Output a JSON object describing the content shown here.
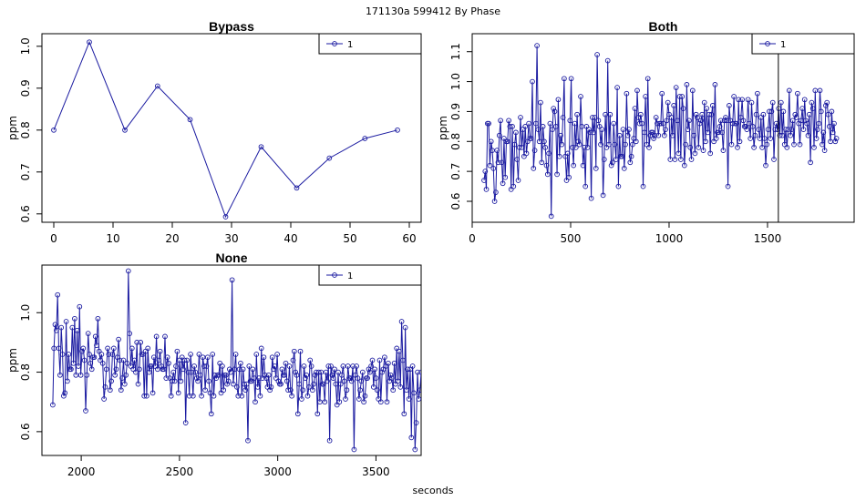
{
  "figure_title": "171130a   599412   By Phase",
  "shared_xlabel": "seconds",
  "colors": {
    "series": "#1a1aa0",
    "axis": "#000000",
    "background": "#ffffff"
  },
  "chart_data": [
    {
      "type": "line",
      "title": "Bypass",
      "ylabel": "ppm",
      "xlim": [
        -2,
        62
      ],
      "ylim": [
        0.58,
        1.03
      ],
      "xticks": [
        0,
        10,
        20,
        30,
        40,
        50,
        60
      ],
      "yticks": [
        0.6,
        0.7,
        0.8,
        0.9,
        1.0
      ],
      "ytick_labels": [
        "0.6",
        "0.7",
        "0.8",
        "0.9",
        "1.0"
      ],
      "legend": {
        "label": "1",
        "position": "top-right"
      },
      "series": [
        {
          "name": "1",
          "x": [
            0,
            6,
            12,
            17.5,
            23,
            29,
            35,
            41,
            46.5,
            52.5,
            58
          ],
          "y": [
            0.8,
            1.01,
            0.8,
            0.905,
            0.825,
            0.593,
            0.76,
            0.662,
            0.733,
            0.78,
            0.8
          ]
        }
      ]
    },
    {
      "type": "line",
      "title": "Both",
      "ylabel": "ppm",
      "xlim": [
        0,
        1940
      ],
      "ylim": [
        0.53,
        1.16
      ],
      "xticks": [
        0,
        500,
        1000,
        1500
      ],
      "yticks": [
        0.6,
        0.7,
        0.8,
        0.9,
        1.0,
        1.1
      ],
      "ytick_labels": [
        "0.6",
        "0.7",
        "0.8",
        "0.9",
        "1.0",
        "1.1"
      ],
      "legend": {
        "label": "1",
        "position": "top-right"
      },
      "vline_x": 1555,
      "series": [
        {
          "name": "1",
          "x_start": 60,
          "x_end": 1850,
          "count": 300,
          "y": [
            0.67,
            0.7,
            0.64,
            0.86,
            0.86,
            0.72,
            0.8,
            0.77,
            0.71,
            0.6,
            0.63,
            0.77,
            0.73,
            0.82,
            0.87,
            0.73,
            0.66,
            0.81,
            0.68,
            0.8,
            0.8,
            0.87,
            0.85,
            0.64,
            0.85,
            0.65,
            0.79,
            0.83,
            0.74,
            0.67,
            0.78,
            0.88,
            0.78,
            0.84,
            0.75,
            0.85,
            0.76,
            0.8,
            0.86,
            0.81,
            0.81,
            1.0,
            0.71,
            0.77,
            0.86,
            1.12,
            0.84,
            0.8,
            0.93,
            0.73,
            0.85,
            0.8,
            0.78,
            0.72,
            0.69,
            0.76,
            0.86,
            0.55,
            0.84,
            0.91,
            0.9,
            0.85,
            0.69,
            0.94,
            0.75,
            0.82,
            0.79,
            0.88,
            1.01,
            0.75,
            0.67,
            0.76,
            0.68,
            0.87,
            1.01,
            0.78,
            0.72,
            0.86,
            0.78,
            0.89,
            0.8,
            0.79,
            0.95,
            0.85,
            0.72,
            0.78,
            0.65,
            0.85,
            0.78,
            0.84,
            0.83,
            0.61,
            0.88,
            0.83,
            0.88,
            0.71,
            1.09,
            0.87,
            0.85,
            0.79,
            0.84,
            0.62,
            0.74,
            0.89,
            0.78,
            1.07,
            0.79,
            0.89,
            0.72,
            0.73,
            0.86,
            0.79,
            0.74,
            0.98,
            0.65,
            0.82,
            0.75,
            0.75,
            0.84,
            0.71,
            0.79,
            0.96,
            0.82,
            0.84,
            0.73,
            0.75,
            0.79,
            0.81,
            0.91,
            0.8,
            0.97,
            0.88,
            0.86,
            0.89,
            0.86,
            0.65,
            0.83,
            0.95,
            0.79,
            1.01,
            0.78,
            0.82,
            0.83,
            0.83,
            0.81,
            0.82,
            0.88,
            0.86,
            0.82,
            0.86,
            0.86,
            0.96,
            0.86,
            0.82,
            0.84,
            0.87,
            0.93,
            0.89,
            0.74,
            0.88,
            0.82,
            0.92,
            0.74,
            0.98,
            0.87,
            0.76,
            0.95,
            0.74,
            0.95,
            0.91,
            0.72,
            0.79,
            0.99,
            0.84,
            0.87,
            0.78,
            0.74,
            0.97,
            0.82,
            0.76,
            0.89,
            0.88,
            0.78,
            0.86,
            0.87,
            0.89,
            0.77,
            0.93,
            0.8,
            0.91,
            0.83,
            0.89,
            0.76,
            0.89,
            0.92,
            0.8,
            0.99,
            0.81,
            0.83,
            0.83,
            0.85,
            0.87,
            0.83,
            0.77,
            0.87,
            0.88,
            0.87,
            0.65,
            0.92,
            0.87,
            0.79,
            0.86,
            0.95,
            0.86,
            0.86,
            0.78,
            0.94,
            0.8,
            0.88,
            0.94,
            0.87,
            0.85,
            0.85,
            0.84,
            0.94,
            0.86,
            0.81,
            0.93,
            0.85,
            0.78,
            0.82,
            0.89,
            0.96,
            0.84,
            0.81,
            0.88,
            0.78,
            0.89,
            0.81,
            0.72,
            0.79,
            0.84,
            0.9,
            0.81,
            0.9,
            0.93,
            0.74,
            0.84,
            0.86,
            0.84,
            0.91,
            0.82,
            0.93,
            0.82,
            0.9,
            0.79,
            0.84,
            0.78,
            0.84,
            0.97,
            0.82,
            0.84,
            0.87,
            0.79,
            0.89,
            0.88,
            0.96,
            0.86,
            0.79,
            0.87,
            0.91,
            0.84,
            0.94,
            0.87,
            0.86,
            0.82,
            0.89,
            0.73,
            0.93,
            0.91,
            0.78,
            0.97,
            0.81,
            0.84,
            0.86,
            0.97,
            0.9,
            0.79,
            0.83,
            0.77,
            0.92,
            0.93,
            0.89,
            0.85,
            0.8,
            0.9,
            0.83,
            0.86,
            0.8,
            0.81
          ]
        }
      ]
    },
    {
      "type": "line",
      "title": "None",
      "ylabel": "ppm",
      "xlim": [
        1800,
        3730
      ],
      "ylim": [
        0.52,
        1.16
      ],
      "xticks": [
        2000,
        2500,
        3000,
        3500
      ],
      "yticks": [
        0.6,
        0.8,
        1.0
      ],
      "ytick_labels": [
        "0.6",
        "0.8",
        "1.0"
      ],
      "legend": {
        "label": "1",
        "position": "top-right"
      },
      "series": [
        {
          "name": "1",
          "x_start": 1855,
          "x_end": 3730,
          "count": 300,
          "y": [
            0.69,
            0.88,
            0.96,
            0.94,
            1.06,
            0.88,
            0.79,
            0.95,
            0.86,
            0.72,
            0.73,
            0.97,
            0.77,
            0.86,
            0.81,
            0.81,
            0.95,
            0.83,
            0.98,
            0.79,
            0.94,
            0.82,
            1.02,
            0.79,
            0.87,
            0.88,
            0.84,
            0.67,
            0.79,
            0.93,
            0.86,
            0.83,
            0.81,
            0.85,
            0.85,
            0.92,
            0.89,
            0.98,
            0.87,
            0.84,
            0.86,
            0.83,
            0.71,
            0.75,
            0.81,
            0.88,
            0.86,
            0.74,
            0.77,
            0.86,
            0.88,
            0.79,
            0.81,
            0.85,
            0.91,
            0.84,
            0.74,
            0.78,
            0.84,
            0.76,
            0.79,
            0.83,
            1.14,
            0.93,
            0.82,
            0.88,
            0.81,
            0.84,
            0.8,
            0.9,
            0.76,
            0.81,
            0.9,
            0.86,
            0.86,
            0.72,
            0.87,
            0.72,
            0.88,
            0.8,
            0.82,
            0.82,
            0.73,
            0.85,
            0.82,
            0.92,
            0.81,
            0.84,
            0.87,
            0.82,
            0.81,
            0.81,
            0.92,
            0.78,
            0.85,
            0.83,
            0.78,
            0.72,
            0.77,
            0.8,
            0.77,
            0.82,
            0.87,
            0.73,
            0.84,
            0.77,
            0.85,
            0.81,
            0.84,
            0.63,
            0.84,
            0.8,
            0.72,
            0.86,
            0.8,
            0.72,
            0.82,
            0.8,
            0.78,
            0.77,
            0.86,
            0.79,
            0.72,
            0.85,
            0.82,
            0.74,
            0.82,
            0.85,
            0.77,
            0.73,
            0.66,
            0.86,
            0.72,
            0.79,
            0.78,
            0.79,
            0.79,
            0.83,
            0.73,
            0.82,
            0.74,
            0.79,
            0.79,
            0.76,
            0.77,
            0.81,
            0.8,
            1.11,
            0.76,
            0.81,
            0.86,
            0.75,
            0.72,
            0.81,
            0.83,
            0.72,
            0.81,
            0.76,
            0.74,
            0.76,
            0.57,
            0.82,
            0.77,
            0.77,
            0.81,
            0.78,
            0.7,
            0.86,
            0.75,
            0.78,
            0.72,
            0.88,
            0.78,
            0.85,
            0.79,
            0.78,
            0.75,
            0.79,
            0.74,
            0.75,
            0.85,
            0.81,
            0.82,
            0.78,
            0.86,
            0.77,
            0.76,
            0.76,
            0.81,
            0.79,
            0.79,
            0.83,
            0.77,
            0.74,
            0.82,
            0.74,
            0.72,
            0.84,
            0.87,
            0.8,
            0.79,
            0.66,
            0.76,
            0.87,
            0.71,
            0.74,
            0.82,
            0.78,
            0.79,
            0.72,
            0.75,
            0.84,
            0.82,
            0.74,
            0.76,
            0.79,
            0.8,
            0.66,
            0.8,
            0.7,
            0.8,
            0.76,
            0.76,
            0.7,
            0.8,
            0.77,
            0.82,
            0.57,
            0.82,
            0.79,
            0.78,
            0.81,
            0.76,
            0.69,
            0.8,
            0.7,
            0.76,
            0.79,
            0.82,
            0.77,
            0.71,
            0.74,
            0.82,
            0.78,
            0.78,
            0.77,
            0.82,
            0.54,
            0.79,
            0.82,
            0.78,
            0.71,
            0.74,
            0.77,
            0.8,
            0.7,
            0.72,
            0.78,
            0.78,
            0.81,
            0.8,
            0.82,
            0.84,
            0.75,
            0.81,
            0.78,
            0.74,
            0.71,
            0.84,
            0.7,
            0.8,
            0.81,
            0.85,
            0.82,
            0.7,
            0.83,
            0.77,
            0.79,
            0.78,
            0.74,
            0.83,
            0.76,
            0.88,
            0.77,
            0.87,
            0.75,
            0.97,
            0.84,
            0.66,
            0.95,
            0.74,
            0.81,
            0.71,
            0.81,
            0.58,
            0.82,
            0.73,
            0.54,
            0.63,
            0.8,
            0.71,
            0.74,
            0.8
          ]
        }
      ]
    }
  ]
}
